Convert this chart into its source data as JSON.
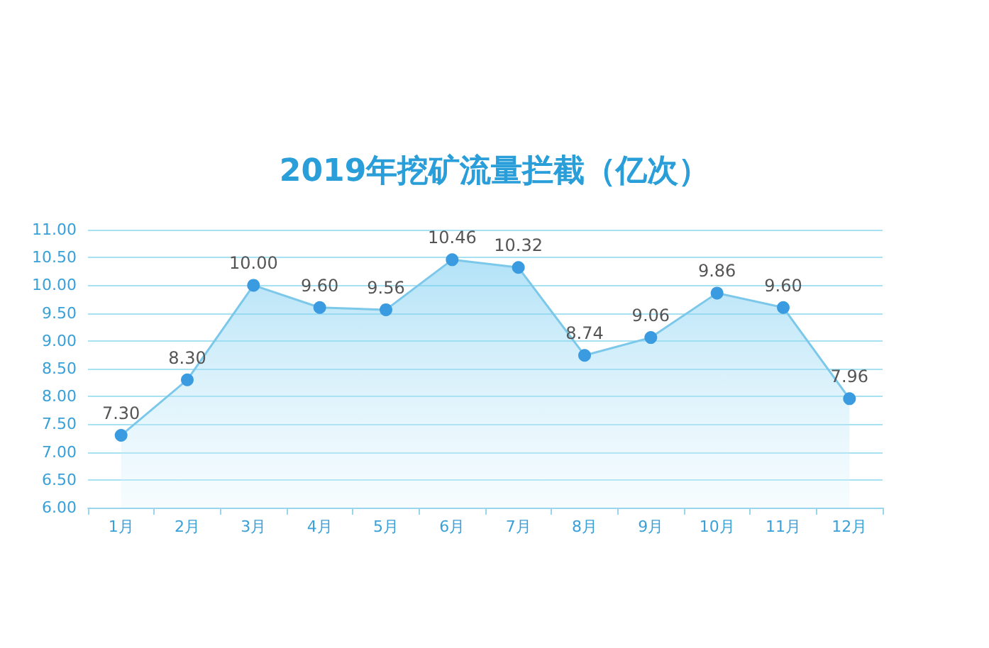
{
  "chart_data": {
    "type": "area",
    "title": "2019年挖矿流量拦截（亿次）",
    "categories": [
      "1月",
      "2月",
      "3月",
      "4月",
      "5月",
      "6月",
      "7月",
      "8月",
      "9月",
      "10月",
      "11月",
      "12月"
    ],
    "series": [
      {
        "color": "#3a9be0",
        "values": [
          7.3,
          8.3,
          10.0,
          9.6,
          9.56,
          10.46,
          10.32,
          8.74,
          9.06,
          9.86,
          9.6,
          7.96
        ],
        "value_labels": [
          "7.30",
          "8.30",
          "10.00",
          "9.60",
          "9.56",
          "10.46",
          "10.32",
          "8.74",
          "9.06",
          "9.86",
          "9.60",
          "7.96"
        ]
      }
    ],
    "ylim": [
      6,
      11
    ],
    "yticks": [
      {
        "value": 6,
        "label": "6.00"
      },
      {
        "value": 6.5,
        "label": "6.50"
      },
      {
        "value": 7,
        "label": "7.00"
      },
      {
        "value": 7.5,
        "label": "7.50"
      },
      {
        "value": 8,
        "label": "8.00"
      },
      {
        "value": 8.5,
        "label": "8.50"
      },
      {
        "value": 9,
        "label": "9.00"
      },
      {
        "value": 9.5,
        "label": "9.50"
      },
      {
        "value": 10,
        "label": "10.00"
      },
      {
        "value": 10.5,
        "label": "10.50"
      },
      {
        "value": 11,
        "label": "11.00"
      }
    ],
    "grid": "y",
    "marker": "circle",
    "line_style": "solid"
  }
}
